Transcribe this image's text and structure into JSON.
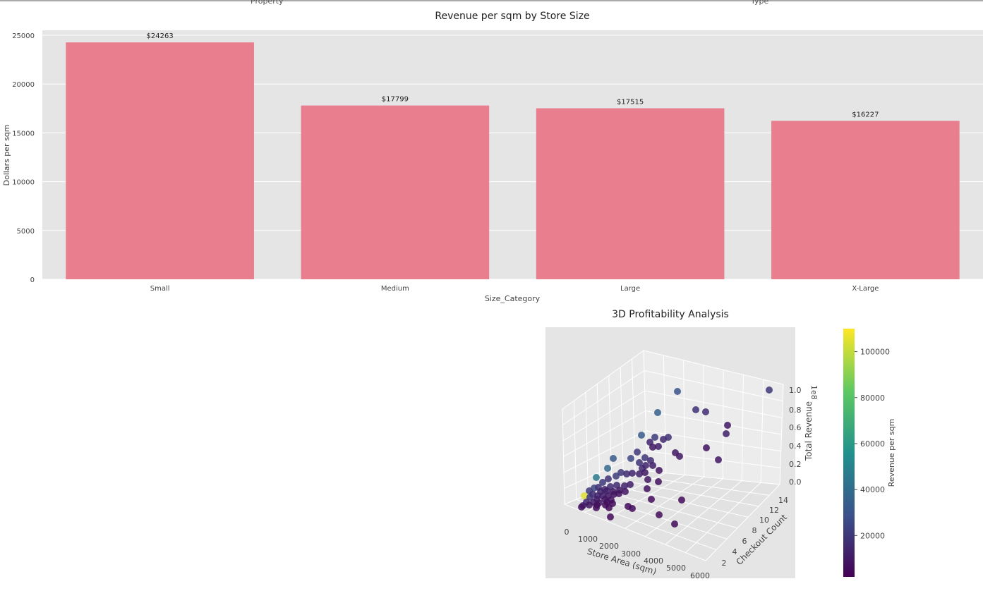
{
  "cut_labels": {
    "left": "Property",
    "right": "Type"
  },
  "chart_data": [
    {
      "type": "bar",
      "title": "Revenue per sqm by Store Size",
      "xlabel": "Size_Category",
      "ylabel": "Dollars per sqm",
      "categories": [
        "Small",
        "Medium",
        "Large",
        "X-Large"
      ],
      "values": [
        24263,
        17799,
        17515,
        16227
      ],
      "data_labels": [
        "$24263",
        "$17799",
        "$17515",
        "$16227"
      ],
      "ylim": [
        0,
        25500
      ],
      "yticks": [
        0,
        5000,
        10000,
        15000,
        20000,
        25000
      ],
      "bar_color": "#e87e8e",
      "grid": true,
      "background": "#e5e5e5"
    },
    {
      "type": "scatter",
      "projection": "3d",
      "title": "3D Profitability Analysis",
      "xlabel": "Store Area (sqm)",
      "ylabel": "Checkout Count",
      "zlabel": "Total Revenue",
      "z_offset_label": "1e8",
      "xticks": [
        "0",
        "1000",
        "2000",
        "3000",
        "4000",
        "5000",
        "6000"
      ],
      "yticks": [
        "2",
        "4",
        "6",
        "8",
        "10",
        "12",
        "14"
      ],
      "zticks": [
        "0.0",
        "0.2",
        "0.4",
        "0.6",
        "0.8",
        "1.0"
      ],
      "colormap": "viridis",
      "colorbar": {
        "label": "Revenue per sqm",
        "ticks": [
          "20000",
          "40000",
          "60000",
          "80000",
          "100000"
        ],
        "range": [
          2000,
          110000
        ]
      }
    }
  ]
}
